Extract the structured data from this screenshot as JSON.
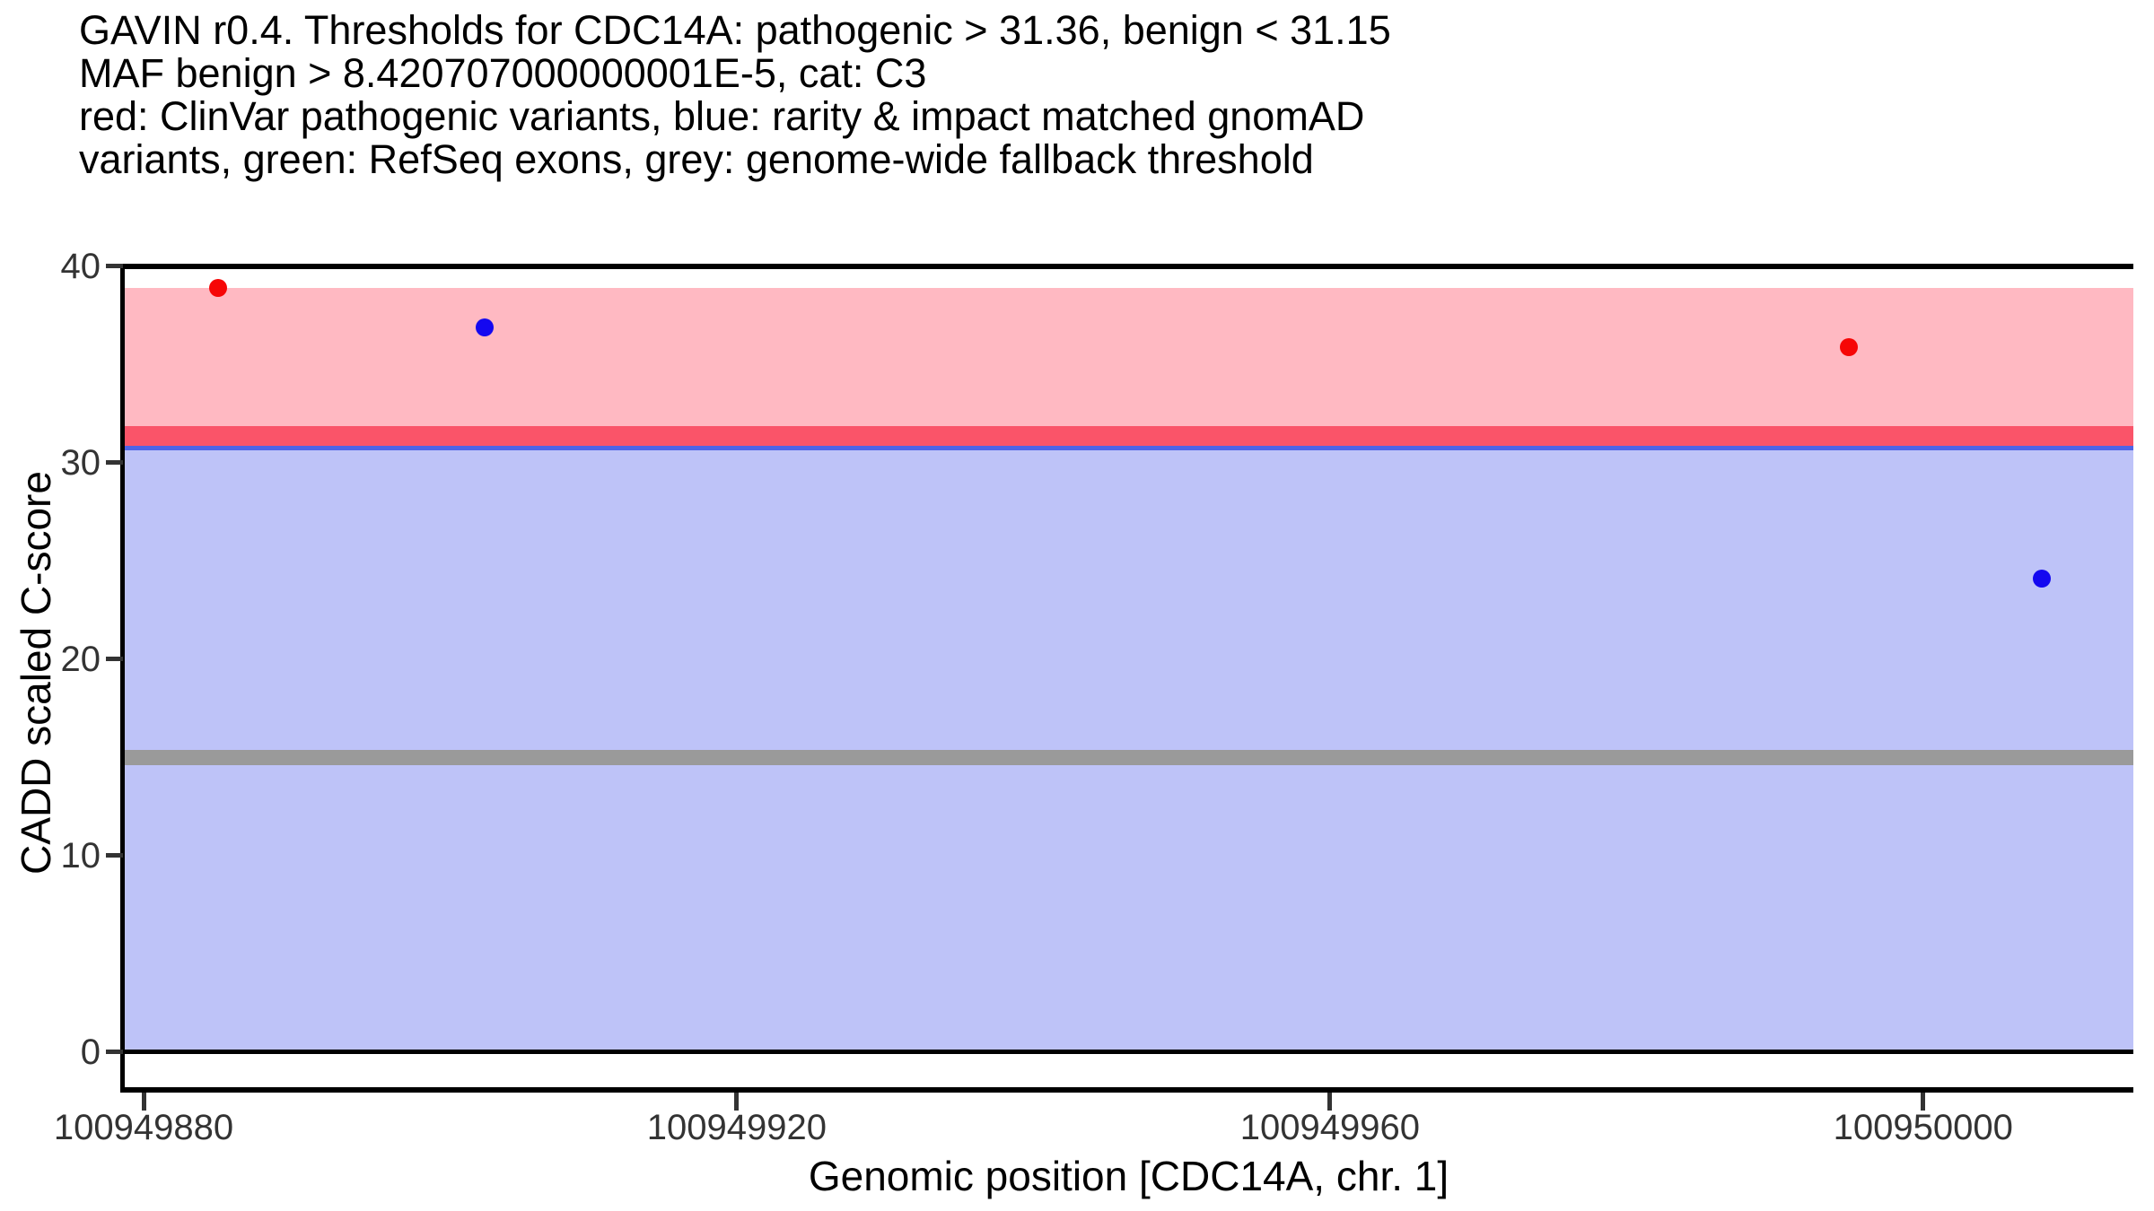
{
  "chart_data": {
    "type": "scatter",
    "title_lines": [
      "GAVIN r0.4. Thresholds for CDC14A: pathogenic > 31.36, benign < 31.15",
      "MAF benign > 8.420707000000001E-5, cat: C3",
      "red: ClinVar pathogenic variants, blue: rarity & impact matched gnomAD",
      "variants, green: RefSeq exons, grey: genome-wide fallback threshold"
    ],
    "xlabel": "Genomic position [CDC14A, chr. 1]",
    "ylabel": "CADD scaled C-score",
    "x_tick_labels": [
      "100949880",
      "100949920",
      "100949960",
      "100950000"
    ],
    "x_tick_values": [
      100949880,
      100949920,
      100949960,
      100950000
    ],
    "y_tick_labels": [
      "0",
      "10",
      "20",
      "30",
      "40"
    ],
    "y_tick_values": [
      0,
      10,
      20,
      30,
      40
    ],
    "xlim": [
      100949878.7,
      100950014.2
    ],
    "ylim": [
      0,
      40
    ],
    "grid": "off",
    "legend": "described in title text",
    "series": [
      {
        "name": "ClinVar pathogenic variants",
        "color": "#f60606",
        "points": [
          {
            "x": 100949885,
            "y": 38.9
          },
          {
            "x": 100949995,
            "y": 35.9
          }
        ]
      },
      {
        "name": "rarity & impact matched gnomAD variants",
        "color": "#1408f0",
        "points": [
          {
            "x": 100949903,
            "y": 36.9
          },
          {
            "x": 100950008,
            "y": 24.1
          }
        ]
      }
    ],
    "thresholds": {
      "pathogenic": 31.36,
      "benign": 31.15,
      "maf_benign": "8.420707000000001E-5",
      "category": "C3",
      "genome_wide_fallback": 15
    },
    "regions": {
      "pathogenic_band": {
        "from": 31.36,
        "to": 38.9,
        "color": "#ffb9c2"
      },
      "benign_band": {
        "from": 0,
        "to": 31.15,
        "color": "#bec3f8"
      },
      "pathogenic_threshold_line": {
        "y": 31.36,
        "thickness_px": 22,
        "color": "#fa5469"
      },
      "benign_threshold_line": {
        "y": 31.15,
        "thickness_px": 22,
        "color": "#4f63e5"
      },
      "fallback_threshold_line": {
        "y": 15,
        "thickness_px": 17,
        "color": "#9a9a9a"
      },
      "zero_line": {
        "y": 0,
        "thickness_px": 5,
        "color": "#000000"
      }
    },
    "colors": {
      "axis_frame": "#000000",
      "tick_text": "#333333",
      "title_text": "#000000",
      "background": "#ffffff"
    }
  }
}
